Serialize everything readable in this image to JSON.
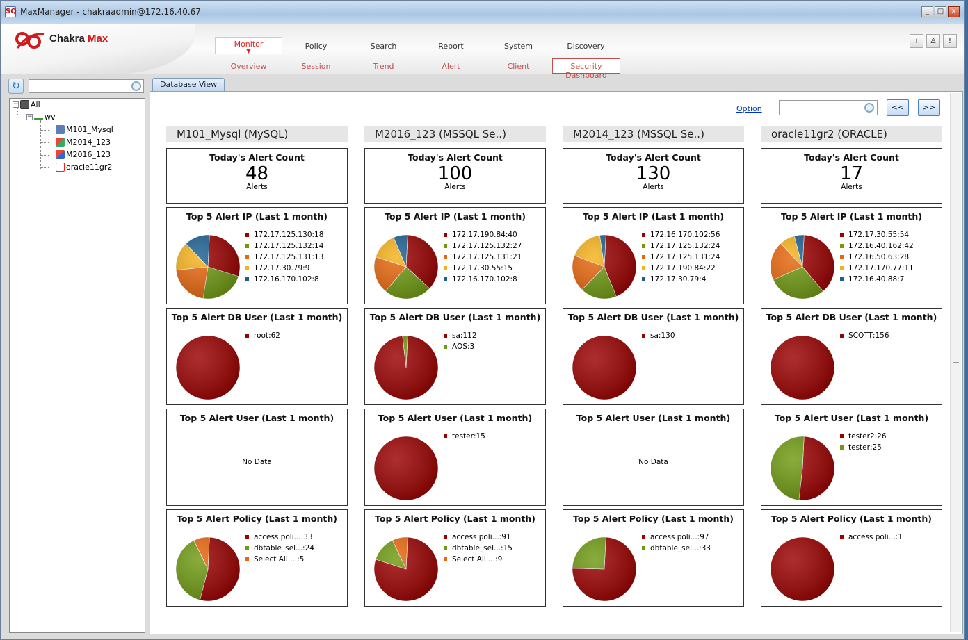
{
  "window": {
    "title": "MaxManager - chakraadmin@172.16.40.67",
    "icon_text": "SQ"
  },
  "logo": {
    "name_part1": "Chakra ",
    "name_part2": "Max"
  },
  "header_buttons": [
    "i",
    "user-icon",
    "!"
  ],
  "nav": {
    "tabs": [
      "Monitor",
      "Policy",
      "Search",
      "Report",
      "System",
      "Discovery"
    ],
    "active_tab": "Monitor",
    "subtabs": [
      "Overview",
      "Session",
      "Trend",
      "Alert",
      "Client",
      "Security Dashboard"
    ],
    "active_subtab": "Security Dashboard"
  },
  "tree": {
    "root": "All",
    "group": "wv",
    "items": [
      "M101_Mysql",
      "M2014_123",
      "M2016_123",
      "oracle11gr2"
    ]
  },
  "content_tab": "Database View",
  "toolbar": {
    "option_label": "Option",
    "search_value": "",
    "prev_label": "<<",
    "next_label": ">>"
  },
  "colors": [
    "#9b0000",
    "#6f9a12",
    "#e8670e",
    "#f5b21c",
    "#1b5f8f"
  ],
  "columns": [
    {
      "db": "M101_Mysql (MySQL)",
      "alert_count_title": "Today's Alert Count",
      "alert_count": "48",
      "alert_unit": "Alerts",
      "cards": [
        {
          "title": "Top 5 Alert IP (Last 1 month)",
          "items": [
            {
              "label": "172.17.125.130",
              "value": 18
            },
            {
              "label": "172.17.125.132",
              "value": 14
            },
            {
              "label": "172.17.125.131",
              "value": 13
            },
            {
              "label": "172.17.30.79",
              "value": 9
            },
            {
              "label": "172.16.170.102",
              "value": 8
            }
          ]
        },
        {
          "title": "Top 5 Alert DB User (Last 1 month)",
          "items": [
            {
              "label": "root",
              "value": 62
            }
          ]
        },
        {
          "title": "Top 5 Alert User (Last 1 month)",
          "items": [],
          "no_data": "No Data"
        },
        {
          "title": "Top 5 Alert Policy (Last 1 month)",
          "items": [
            {
              "label": "access poli...",
              "value": 33
            },
            {
              "label": "dbtable_sel...",
              "value": 24
            },
            {
              "label": "Select All ...",
              "value": 5
            }
          ]
        }
      ]
    },
    {
      "db": "M2016_123 (MSSQL Se..)",
      "alert_count_title": "Today's Alert Count",
      "alert_count": "100",
      "alert_unit": "Alerts",
      "cards": [
        {
          "title": "Top 5 Alert IP (Last 1 month)",
          "items": [
            {
              "label": "172.17.190.84",
              "value": 40
            },
            {
              "label": "172.17.125.132",
              "value": 27
            },
            {
              "label": "172.17.125.131",
              "value": 21
            },
            {
              "label": "172.17.30.55",
              "value": 15
            },
            {
              "label": "172.16.170.102",
              "value": 8
            }
          ]
        },
        {
          "title": "Top 5 Alert DB User (Last 1 month)",
          "items": [
            {
              "label": "sa",
              "value": 112
            },
            {
              "label": "AOS",
              "value": 3
            }
          ]
        },
        {
          "title": "Top 5 Alert User (Last 1 month)",
          "items": [
            {
              "label": "tester",
              "value": 15
            }
          ]
        },
        {
          "title": "Top 5 Alert Policy (Last 1 month)",
          "items": [
            {
              "label": "access poli...",
              "value": 91
            },
            {
              "label": "dbtable_sel...",
              "value": 15
            },
            {
              "label": "Select All ...",
              "value": 9
            }
          ]
        }
      ]
    },
    {
      "db": "M2014_123 (MSSQL Se..)",
      "alert_count_title": "Today's Alert Count",
      "alert_count": "130",
      "alert_unit": "Alerts",
      "cards": [
        {
          "title": "Top 5 Alert IP (Last 1 month)",
          "items": [
            {
              "label": "172.16.170.102",
              "value": 56
            },
            {
              "label": "172.17.125.132",
              "value": 24
            },
            {
              "label": "172.17.125.131",
              "value": 24
            },
            {
              "label": "172.17.190.84",
              "value": 22
            },
            {
              "label": "172.17.30.79",
              "value": 4
            }
          ]
        },
        {
          "title": "Top 5 Alert DB User (Last 1 month)",
          "items": [
            {
              "label": "sa",
              "value": 130
            }
          ]
        },
        {
          "title": "Top 5 Alert User (Last 1 month)",
          "items": [],
          "no_data": "No Data"
        },
        {
          "title": "Top 5 Alert Policy (Last 1 month)",
          "items": [
            {
              "label": "access poli...",
              "value": 97
            },
            {
              "label": "dbtable_sel...",
              "value": 33
            }
          ]
        }
      ]
    },
    {
      "db": "oracle11gr2 (ORACLE)",
      "alert_count_title": "Today's Alert Count",
      "alert_count": "17",
      "alert_unit": "Alerts",
      "cards": [
        {
          "title": "Top 5 Alert IP (Last 1 month)",
          "items": [
            {
              "label": "172.17.30.55",
              "value": 54
            },
            {
              "label": "172.16.40.162",
              "value": 42
            },
            {
              "label": "172.16.50.63",
              "value": 28
            },
            {
              "label": "172.17.170.77",
              "value": 11
            },
            {
              "label": "172.16.40.88",
              "value": 7
            }
          ]
        },
        {
          "title": "Top 5 Alert DB User (Last 1 month)",
          "items": [
            {
              "label": "SCOTT",
              "value": 156
            }
          ]
        },
        {
          "title": "Top 5 Alert User (Last 1 month)",
          "items": [
            {
              "label": "tester2",
              "value": 26
            },
            {
              "label": "tester",
              "value": 25
            }
          ]
        },
        {
          "title": "Top 5 Alert Policy (Last 1 month)",
          "items": [
            {
              "label": "access poli...",
              "value": 1
            }
          ]
        }
      ]
    }
  ]
}
